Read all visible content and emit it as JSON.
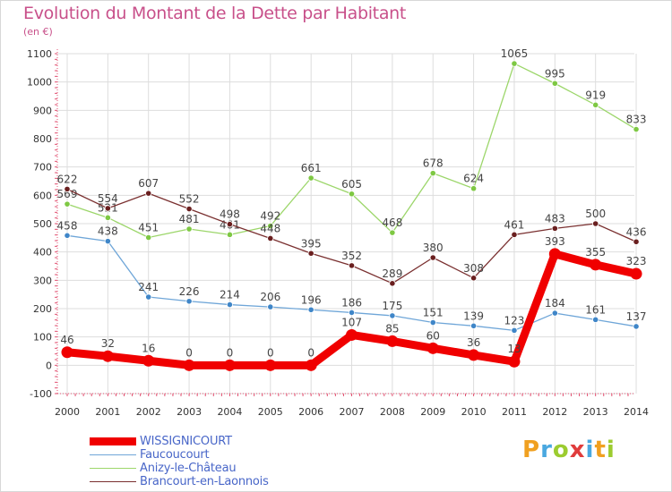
{
  "title": "Evolution du Montant de la Dette par Habitant",
  "subtitle": "(en €)",
  "logo": {
    "letters": [
      "P",
      "r",
      "o",
      "x",
      "i",
      "t",
      "i"
    ],
    "colors": [
      "#f0a020",
      "#4aa8e0",
      "#9ccc30",
      "#e03c3c",
      "#4aa8e0",
      "#f0a020",
      "#9ccc30"
    ]
  },
  "chart_data": {
    "type": "line",
    "title": "Evolution du Montant de la Dette par Habitant",
    "ylabel": "(en €)",
    "xlabel": "",
    "x": [
      2000,
      2001,
      2002,
      2003,
      2004,
      2005,
      2006,
      2007,
      2008,
      2009,
      2010,
      2011,
      2012,
      2013,
      2014
    ],
    "xticks": [
      "2000",
      "2001",
      "2002",
      "2003",
      "2004",
      "2005",
      "2006",
      "2007",
      "2008",
      "2009",
      "2010",
      "2011",
      "2012",
      "2013",
      "2014"
    ],
    "ylim": [
      -100,
      1100
    ],
    "yticks": [
      "-100",
      "0",
      "100",
      "200",
      "300",
      "400",
      "500",
      "600",
      "700",
      "800",
      "900",
      "1000",
      "1100"
    ],
    "grid": true,
    "legend_position": "bottom-left",
    "series": [
      {
        "name": "Anizy-le-Château",
        "color": "#9cd66a",
        "marker_color": "#7ec843",
        "values": [
          569,
          521,
          451,
          481,
          461,
          492,
          661,
          605,
          468,
          678,
          624,
          1065,
          995,
          919,
          833
        ],
        "labels": [
          "569",
          "521",
          "451",
          "481",
          "461",
          "492",
          "661",
          "605",
          "468",
          "678",
          "624",
          "1065",
          "995",
          "919",
          "833"
        ]
      },
      {
        "name": "Brancourt-en-Laonnois",
        "color": "#7a3030",
        "marker_color": "#6a1f1f",
        "values": [
          622,
          554,
          607,
          552,
          498,
          448,
          395,
          352,
          289,
          380,
          308,
          461,
          483,
          500,
          436
        ],
        "labels": [
          "622",
          "554",
          "607",
          "552",
          "498",
          "448",
          "395",
          "352",
          "289",
          "380",
          "308",
          "461",
          "483",
          "500",
          "436"
        ]
      },
      {
        "name": "Faucoucourt",
        "color": "#6fa6d8",
        "marker_color": "#3f86c8",
        "values": [
          458,
          438,
          241,
          226,
          214,
          206,
          196,
          186,
          175,
          151,
          139,
          123,
          184,
          161,
          137
        ],
        "labels": [
          "458",
          "438",
          "241",
          "226",
          "214",
          "206",
          "196",
          "186",
          "175",
          "151",
          "139",
          "123",
          "184",
          "161",
          "137"
        ]
      },
      {
        "name": "WISSIGNICOURT",
        "color": "#f00000",
        "marker_color": "#f00000",
        "values": [
          46,
          32,
          16,
          0,
          0,
          0,
          0,
          107,
          85,
          60,
          36,
          13,
          393,
          355,
          323
        ],
        "labels": [
          "46",
          "32",
          "16",
          "0",
          "0",
          "0",
          "0",
          "107",
          "85",
          "60",
          "36",
          "13",
          "393",
          "355",
          "323"
        ]
      }
    ],
    "legend": [
      "WISSIGNICOURT",
      "Faucoucourt",
      "Anizy-le-Château",
      "Brancourt-en-Laonnois"
    ]
  }
}
